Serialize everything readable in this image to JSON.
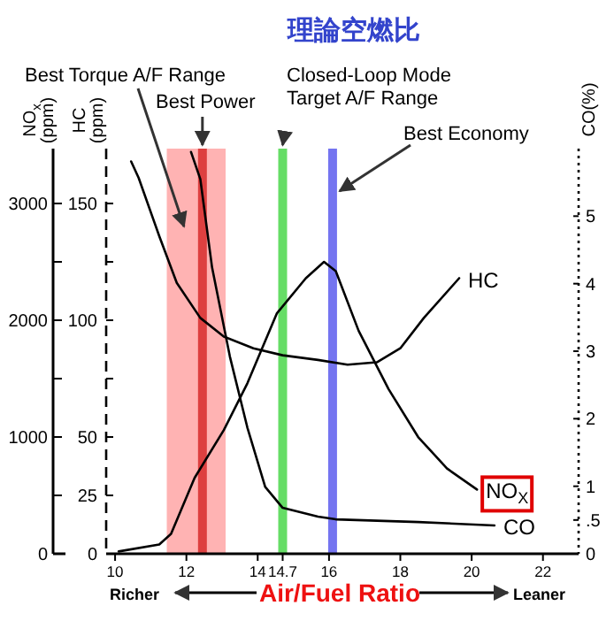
{
  "chart_data": {
    "type": "line",
    "title": "理論空燃比",
    "xlabel": "Air/Fuel Ratio",
    "ylabel": "NO$_{x}$ (ppm)",
    "y2label": "HC (ppm)",
    "y3label": "CO(%)",
    "xlim": [
      9.75,
      23
    ],
    "xticks": [
      10,
      12,
      14,
      14.7,
      16,
      18,
      20,
      22
    ],
    "ylim": [
      0,
      3470
    ],
    "yticks": [
      0,
      {
        "value": 500,
        "label": null
      },
      1000,
      {
        "value": 1500,
        "label": null
      },
      2000,
      {
        "value": 2500,
        "label": null
      },
      3000
    ],
    "y2lim": [
      0,
      173.5
    ],
    "y2ticks": [
      0,
      25,
      50,
      {
        "value": 75,
        "label": null
      },
      100,
      {
        "value": 125,
        "label": null
      },
      150
    ],
    "y3lim": [
      0,
      6
    ],
    "y3ticks": [
      0,
      {
        "value": 0.5,
        "label": ".5"
      },
      1,
      2,
      3,
      4,
      5
    ],
    "series": [
      {
        "name": "HC",
        "color": "#000000",
        "axis": "y2",
        "x": [
          10.45,
          10.66,
          11.24,
          11.73,
          12.39,
          13.05,
          13.88,
          14.7,
          15.69,
          16.52,
          17.34,
          18.0,
          18.66,
          19.65
        ],
        "values": [
          168,
          161,
          136,
          116,
          101,
          93,
          88,
          85,
          83,
          81,
          82,
          88,
          101,
          118
        ]
      },
      {
        "name": "NO$_{X}$",
        "color": "#000000",
        "axis": "y",
        "x": [
          10.1,
          11.24,
          11.57,
          12.23,
          13.05,
          13.71,
          14.54,
          15.35,
          15.86,
          16.19,
          16.83,
          17.67,
          18.5,
          19.31,
          20.15
        ],
        "values": [
          20,
          80,
          170,
          650,
          1060,
          1460,
          2060,
          2360,
          2500,
          2420,
          1910,
          1410,
          1000,
          730,
          550
        ]
      },
      {
        "name": "CO",
        "color": "#000000",
        "axis": "y3",
        "x": [
          12.13,
          12.39,
          12.72,
          13.22,
          13.71,
          14.21,
          14.7,
          15.69,
          16.19,
          18.5,
          20.64
        ],
        "values": [
          5.95,
          5.55,
          4.24,
          2.92,
          1.87,
          0.99,
          0.68,
          0.55,
          0.51,
          0.47,
          0.42
        ]
      }
    ],
    "bands": [
      {
        "axis": "x",
        "from": 11.45,
        "to": 13.1,
        "label": "Best Torque A/F Range",
        "color": "#ffb3b3"
      }
    ],
    "ref_lines": [
      {
        "axis": "x",
        "value": 12.45,
        "label": "Best Power",
        "color": "#dd4040"
      },
      {
        "axis": "x",
        "value": 14.7,
        "label": "Closed-Loop Mode Target A/F Range",
        "color": "#66dd66"
      },
      {
        "axis": "x",
        "value": 16.1,
        "label": "Best Economy",
        "color": "#7474f0"
      }
    ],
    "annotations": [
      "Richer",
      "Leaner"
    ],
    "legend": false,
    "grid": false,
    "marker": "none",
    "line_style": "solid"
  }
}
